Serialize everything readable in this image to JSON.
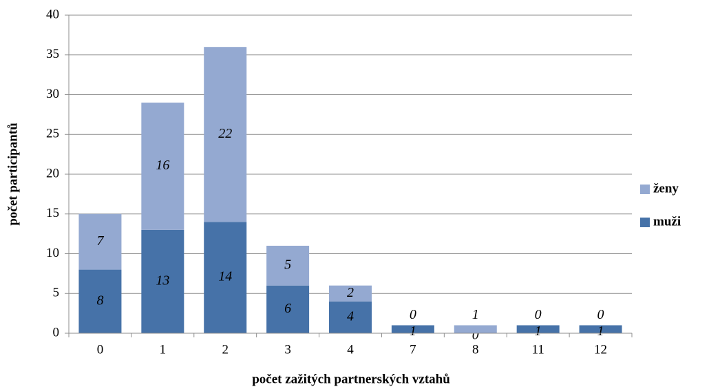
{
  "chart_data": {
    "type": "stacked_bar",
    "x_label": "počet zažitých partnerských vztahů",
    "y_label": "počet participantů",
    "categories": [
      "0",
      "1",
      "2",
      "3",
      "4",
      "7",
      "8",
      "11",
      "12"
    ],
    "series": [
      {
        "name": "muži",
        "color": "#4672a8",
        "values": [
          8,
          13,
          14,
          6,
          4,
          1,
          0,
          1,
          1
        ]
      },
      {
        "name": "ženy",
        "color": "#94a9d1",
        "values": [
          7,
          16,
          22,
          5,
          2,
          0,
          1,
          0,
          0
        ]
      }
    ],
    "ylim": [
      0,
      40
    ],
    "yticks": [
      0,
      5,
      10,
      15,
      20,
      25,
      30,
      35,
      40
    ],
    "grid": true,
    "legend": "right"
  }
}
